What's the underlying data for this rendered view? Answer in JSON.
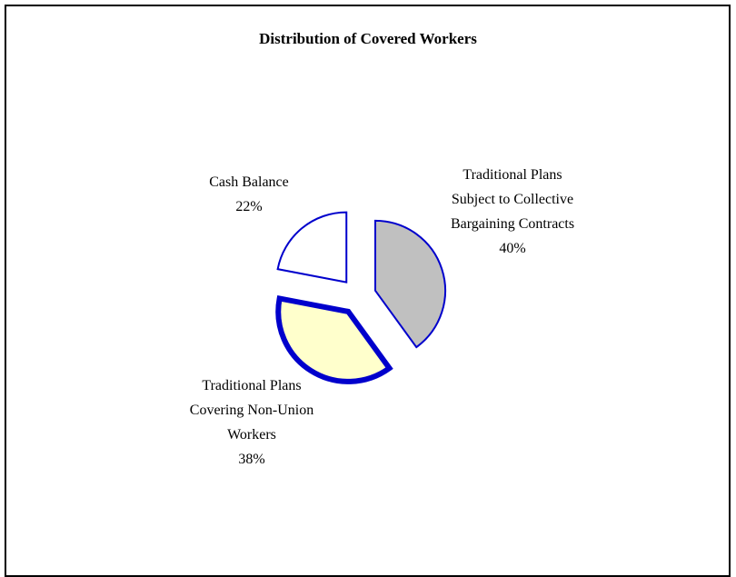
{
  "chart_data": {
    "type": "pie",
    "title": "Distribution of Covered Workers",
    "categories": [
      "Traditional Plans Subject to Collective Bargaining Contracts",
      "Traditional Plans Covering Non-Union Workers",
      "Cash Balance"
    ],
    "values": [
      40,
      38,
      22
    ],
    "value_labels": [
      "40%",
      "38%",
      "22%"
    ],
    "colors": [
      "#c0c0c0",
      "#ffffcc",
      "#ffffff"
    ],
    "edge_color": "#0000cc"
  }
}
